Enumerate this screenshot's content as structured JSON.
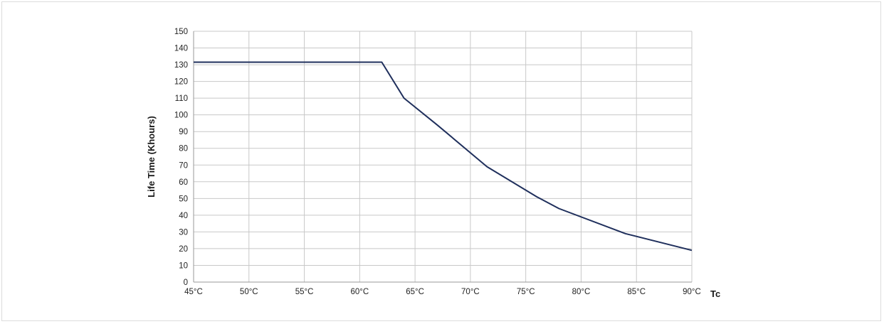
{
  "chart_data": {
    "type": "line",
    "title": "",
    "xlabel": "Tc",
    "ylabel": "Life Time (Khours)",
    "xlim": [
      45,
      90
    ],
    "ylim": [
      0,
      150
    ],
    "x_ticks": [
      45,
      50,
      55,
      60,
      65,
      70,
      75,
      80,
      85,
      90
    ],
    "x_tick_labels": [
      "45°C",
      "50°C",
      "55°C",
      "60°C",
      "65°C",
      "70°C",
      "75°C",
      "80°C",
      "85°C",
      "90°C"
    ],
    "y_ticks": [
      0,
      10,
      20,
      30,
      40,
      50,
      60,
      70,
      80,
      90,
      100,
      110,
      120,
      130,
      140,
      150
    ],
    "y_tick_labels": [
      "0",
      "10",
      "20",
      "30",
      "40",
      "50",
      "60",
      "70",
      "80",
      "90",
      "100",
      "110",
      "120",
      "130",
      "140",
      "150"
    ],
    "grid": true,
    "legend": "none",
    "series": [
      {
        "color": "#1f2f5c",
        "x": [
          45,
          62,
          64,
          67,
          71.5,
          76,
          78,
          84,
          90
        ],
        "y": [
          131.5,
          131.5,
          110,
          94,
          69,
          51,
          44,
          29,
          19
        ]
      }
    ]
  },
  "colors": {
    "grid": "#c8c8c8",
    "axis": "#9a9a9a",
    "line": "#1f2f5c"
  }
}
